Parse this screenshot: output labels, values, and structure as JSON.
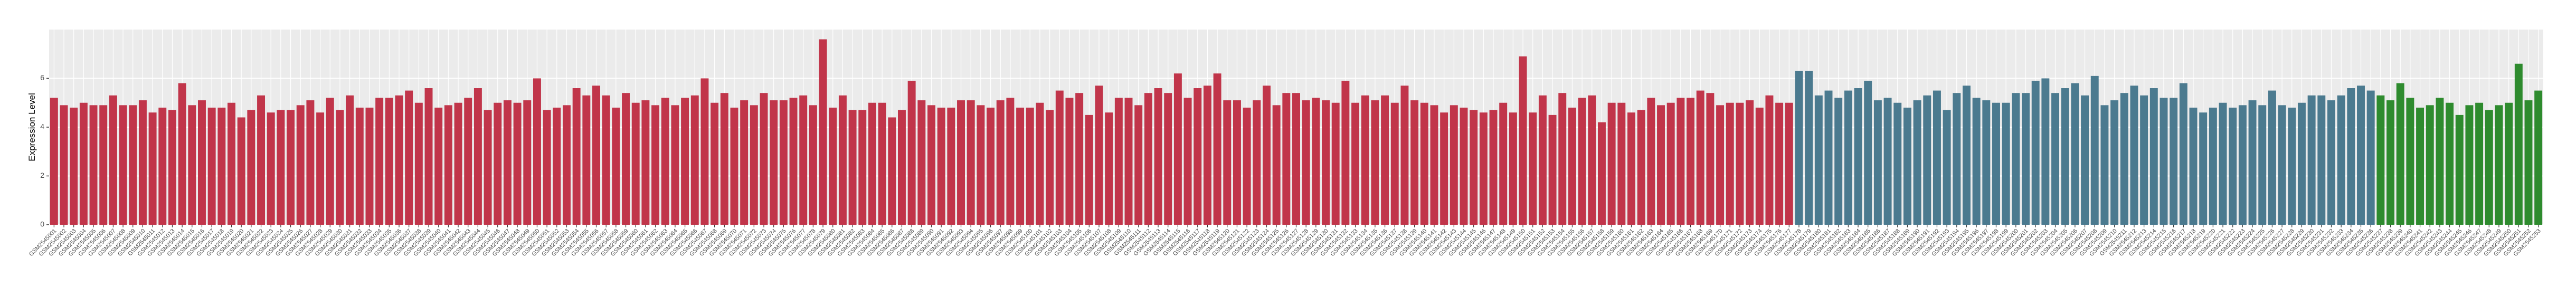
{
  "chart_data": {
    "type": "bar",
    "y_label": "Expression Level",
    "categories": [
      "GSM2545001",
      "GSM2545002",
      "GSM2545003",
      "GSM2545004",
      "GSM2545005",
      "GSM2545006",
      "GSM2545007",
      "GSM2545008",
      "GSM2545009",
      "GSM2545010",
      "GSM2545011",
      "GSM2545012",
      "GSM2545013",
      "GSM2545014",
      "GSM2545015",
      "GSM2545016",
      "GSM2545017",
      "GSM2545018",
      "GSM2545019",
      "GSM2545020",
      "GSM2545021",
      "GSM2545022",
      "GSM2545023",
      "GSM2545024",
      "GSM2545025",
      "GSM2545026",
      "GSM2545027",
      "GSM2545028",
      "GSM2545029",
      "GSM2545030",
      "GSM2545031",
      "GSM2545032",
      "GSM2545033",
      "GSM2545034",
      "GSM2545035",
      "GSM2545036",
      "GSM2545037",
      "GSM2545038",
      "GSM2545039",
      "GSM2545040",
      "GSM2545041",
      "GSM2545042",
      "GSM2545043",
      "GSM2545044",
      "GSM2545045",
      "GSM2545046",
      "GSM2545047",
      "GSM2545048",
      "GSM2545049",
      "GSM2545050",
      "GSM2545051",
      "GSM2545052",
      "GSM2545053",
      "GSM2545054",
      "GSM2545055",
      "GSM2545056",
      "GSM2545057",
      "GSM2545058",
      "GSM2545059",
      "GSM2545060",
      "GSM2545061",
      "GSM2545062",
      "GSM2545063",
      "GSM2545064",
      "GSM2545065",
      "GSM2545066",
      "GSM2545067",
      "GSM2545068",
      "GSM2545069",
      "GSM2545070",
      "GSM2545071",
      "GSM2545072",
      "GSM2545073",
      "GSM2545074",
      "GSM2545075",
      "GSM2545076",
      "GSM2545077",
      "GSM2545078",
      "GSM2545079",
      "GSM2545080",
      "GSM2545081",
      "GSM2545082",
      "GSM2545083",
      "GSM2545084",
      "GSM2545085",
      "GSM2545086",
      "GSM2545087",
      "GSM2545088",
      "GSM2545089",
      "GSM2545090",
      "GSM2545091",
      "GSM2545092",
      "GSM2545093",
      "GSM2545094",
      "GSM2545095",
      "GSM2545096",
      "GSM2545097",
      "GSM2545098",
      "GSM2545099",
      "GSM2545100",
      "GSM2545101",
      "GSM2545102",
      "GSM2545103",
      "GSM2545104",
      "GSM2545105",
      "GSM2545106",
      "GSM2545107",
      "GSM2545108",
      "GSM2545109",
      "GSM2545110",
      "GSM2545111",
      "GSM2545112",
      "GSM2545113",
      "GSM2545114",
      "GSM2545115",
      "GSM2545116",
      "GSM2545117",
      "GSM2545118",
      "GSM2545119",
      "GSM2545120",
      "GSM2545121",
      "GSM2545122",
      "GSM2545123",
      "GSM2545124",
      "GSM2545125",
      "GSM2545126",
      "GSM2545127",
      "GSM2545128",
      "GSM2545129",
      "GSM2545130",
      "GSM2545131",
      "GSM2545132",
      "GSM2545133",
      "GSM2545134",
      "GSM2545135",
      "GSM2545136",
      "GSM2545137",
      "GSM2545138",
      "GSM2545139",
      "GSM2545140",
      "GSM2545141",
      "GSM2545142",
      "GSM2545143",
      "GSM2545144",
      "GSM2545145",
      "GSM2545146",
      "GSM2545147",
      "GSM2545148",
      "GSM2545149",
      "GSM2545150",
      "GSM2545151",
      "GSM2545152",
      "GSM2545153",
      "GSM2545154",
      "GSM2545155",
      "GSM2545156",
      "GSM2545157",
      "GSM2545158",
      "GSM2545159",
      "GSM2545160",
      "GSM2545161",
      "GSM2545162",
      "GSM2545163",
      "GSM2545164",
      "GSM2545165",
      "GSM2545166",
      "GSM2545167",
      "GSM2545168",
      "GSM2545169",
      "GSM2545170",
      "GSM2545171",
      "GSM2545172",
      "GSM2545173",
      "GSM2545174",
      "GSM2545175",
      "GSM2545176",
      "GSM2545177",
      "GSM2545178",
      "GSM2545179",
      "GSM2545180",
      "GSM2545181",
      "GSM2545182",
      "GSM2545183",
      "GSM2545184",
      "GSM2545185",
      "GSM2545186",
      "GSM2545187",
      "GSM2545188",
      "GSM2545189",
      "GSM2545190",
      "GSM2545191",
      "GSM2545192",
      "GSM2545193",
      "GSM2545194",
      "GSM2545195",
      "GSM2545196",
      "GSM2545197",
      "GSM2545198",
      "GSM2545199",
      "GSM2545200",
      "GSM2545201",
      "GSM2545202",
      "GSM2545203",
      "GSM2545204",
      "GSM2545205",
      "GSM2545206",
      "GSM2545207",
      "GSM2545208",
      "GSM2545209",
      "GSM2545210",
      "GSM2545211",
      "GSM2545212",
      "GSM2545213",
      "GSM2545214",
      "GSM2545215",
      "GSM2545216",
      "GSM2545217",
      "GSM2545218",
      "GSM2545219",
      "GSM2545220",
      "GSM2545221",
      "GSM2545222",
      "GSM2545223",
      "GSM2545224",
      "GSM2545225",
      "GSM2545226",
      "GSM2545227",
      "GSM2545228",
      "GSM2545229",
      "GSM2545230",
      "GSM2545231",
      "GSM2545232",
      "GSM2545233",
      "GSM2545234",
      "GSM2545235",
      "GSM2545236",
      "GSM2545237",
      "GSM2545238",
      "GSM2545239",
      "GSM2545240",
      "GSM2545241",
      "GSM2545242",
      "GSM2545243",
      "GSM2545244",
      "GSM2545245",
      "GSM2545246",
      "GSM2545247",
      "GSM2545248",
      "GSM2545249",
      "GSM2545250",
      "GSM2545251",
      "GSM2545252",
      "GSM2545253"
    ],
    "series": [
      {
        "color": "#c1354a",
        "values": [
          5.2,
          4.9,
          4.8,
          5.0,
          4.9,
          4.9,
          5.3,
          4.9,
          4.9,
          5.1,
          4.6,
          4.8,
          4.7,
          5.8,
          4.9,
          5.1,
          4.8,
          4.8,
          5.0,
          4.4,
          4.7,
          5.3,
          4.6,
          4.7,
          4.7,
          4.9,
          5.1,
          4.6,
          5.2,
          4.7,
          5.3,
          4.8,
          4.8,
          5.2,
          5.2,
          5.3,
          5.5,
          5.0,
          5.6,
          4.8,
          4.9,
          5.0,
          5.2,
          5.6,
          4.7,
          5.0,
          5.1,
          5.0,
          5.1,
          6.0,
          4.7,
          4.8,
          4.9,
          5.6,
          5.3,
          5.7,
          5.3,
          4.8,
          5.4,
          5.0,
          5.1,
          4.9,
          5.2,
          4.9,
          5.2,
          5.3,
          6.0,
          5.0,
          5.4,
          4.8,
          5.1,
          4.9,
          5.4,
          5.1,
          5.1,
          5.2,
          5.3,
          4.9,
          7.6,
          4.8,
          5.3,
          4.7,
          4.7,
          5.0,
          5.0,
          4.4,
          4.7,
          5.9,
          5.1,
          4.9,
          4.8,
          4.8,
          5.1,
          5.1,
          4.9,
          4.8,
          5.1,
          5.2,
          4.8,
          4.8,
          5.0,
          4.7,
          5.5,
          5.2,
          5.4,
          4.5,
          5.7,
          4.6,
          5.2,
          5.2,
          4.9,
          5.4,
          5.6,
          5.4,
          6.2,
          5.2,
          5.6,
          5.7,
          6.2,
          5.1,
          5.1,
          4.8,
          5.1,
          5.7,
          4.9,
          5.4,
          5.4,
          5.1,
          5.2,
          5.1,
          5.0,
          5.9,
          5.0,
          5.3,
          5.1,
          5.3,
          5.0,
          5.7,
          5.1,
          5.0,
          4.9,
          4.6,
          4.9,
          4.8,
          4.7,
          4.6,
          4.7,
          5.0,
          4.6,
          6.9,
          4.6,
          5.3,
          4.5,
          5.4,
          4.8,
          5.2,
          5.3,
          4.2,
          5.0,
          5.0,
          4.6,
          4.7,
          5.2,
          4.9,
          5.0,
          5.2,
          5.2,
          5.5,
          5.4,
          4.9,
          5.0,
          5.0,
          5.1,
          4.8,
          5.3,
          5.0,
          5.0,
          null,
          null,
          null,
          null,
          null,
          null,
          null,
          null,
          null,
          null,
          null,
          null,
          null,
          null,
          null,
          null,
          null,
          null,
          null,
          null,
          null,
          null,
          null,
          null,
          null,
          null,
          null,
          null,
          null,
          null,
          null,
          null,
          null,
          null,
          null,
          null,
          null,
          null,
          null,
          null,
          null,
          null,
          null,
          null,
          null,
          null,
          null,
          null,
          null,
          null,
          null,
          null,
          null,
          null,
          null,
          null,
          null,
          null,
          null,
          null,
          null,
          null,
          null,
          null,
          null,
          null,
          null,
          null,
          null,
          null,
          null,
          null,
          null,
          null,
          null,
          null
        ]
      },
      {
        "color": "#4b7a8f",
        "values": [
          null,
          null,
          null,
          null,
          null,
          null,
          null,
          null,
          null,
          null,
          null,
          null,
          null,
          null,
          null,
          null,
          null,
          null,
          null,
          null,
          null,
          null,
          null,
          null,
          null,
          null,
          null,
          null,
          null,
          null,
          null,
          null,
          null,
          null,
          null,
          null,
          null,
          null,
          null,
          null,
          null,
          null,
          null,
          null,
          null,
          null,
          null,
          null,
          null,
          null,
          null,
          null,
          null,
          null,
          null,
          null,
          null,
          null,
          null,
          null,
          null,
          null,
          null,
          null,
          null,
          null,
          null,
          null,
          null,
          null,
          null,
          null,
          null,
          null,
          null,
          null,
          null,
          null,
          null,
          null,
          null,
          null,
          null,
          null,
          null,
          null,
          null,
          null,
          null,
          null,
          null,
          null,
          null,
          null,
          null,
          null,
          null,
          null,
          null,
          null,
          null,
          null,
          null,
          null,
          null,
          null,
          null,
          null,
          null,
          null,
          null,
          null,
          null,
          null,
          null,
          null,
          null,
          null,
          null,
          null,
          null,
          null,
          null,
          null,
          null,
          null,
          null,
          null,
          null,
          null,
          null,
          null,
          null,
          null,
          null,
          null,
          null,
          null,
          null,
          null,
          null,
          null,
          null,
          null,
          null,
          null,
          null,
          null,
          null,
          null,
          null,
          null,
          null,
          null,
          null,
          null,
          null,
          null,
          null,
          null,
          null,
          null,
          null,
          null,
          null,
          null,
          null,
          null,
          null,
          null,
          null,
          null,
          null,
          null,
          null,
          null,
          null,
          6.3,
          6.3,
          5.3,
          5.5,
          5.2,
          5.5,
          5.6,
          5.9,
          5.1,
          5.2,
          5.0,
          4.8,
          5.1,
          5.3,
          5.5,
          4.7,
          5.4,
          5.7,
          5.2,
          5.1,
          5.0,
          5.0,
          5.4,
          5.4,
          5.9,
          6.0,
          5.4,
          5.6,
          5.8,
          5.3,
          6.1,
          4.9,
          5.1,
          5.4,
          5.7,
          5.3,
          5.6,
          5.2,
          5.2,
          5.8,
          4.8,
          4.6,
          4.8,
          5.0,
          4.8,
          4.9,
          5.1,
          4.9,
          5.5,
          4.9,
          4.8,
          5.0,
          5.3,
          5.3,
          5.1,
          5.3,
          5.6,
          5.7,
          5.5,
          null,
          null,
          null,
          null,
          null,
          null,
          null,
          null,
          null,
          null,
          null,
          null,
          null,
          null,
          null,
          null,
          null
        ]
      },
      {
        "color": "#2e8b2e",
        "values": [
          null,
          null,
          null,
          null,
          null,
          null,
          null,
          null,
          null,
          null,
          null,
          null,
          null,
          null,
          null,
          null,
          null,
          null,
          null,
          null,
          null,
          null,
          null,
          null,
          null,
          null,
          null,
          null,
          null,
          null,
          null,
          null,
          null,
          null,
          null,
          null,
          null,
          null,
          null,
          null,
          null,
          null,
          null,
          null,
          null,
          null,
          null,
          null,
          null,
          null,
          null,
          null,
          null,
          null,
          null,
          null,
          null,
          null,
          null,
          null,
          null,
          null,
          null,
          null,
          null,
          null,
          null,
          null,
          null,
          null,
          null,
          null,
          null,
          null,
          null,
          null,
          null,
          null,
          null,
          null,
          null,
          null,
          null,
          null,
          null,
          null,
          null,
          null,
          null,
          null,
          null,
          null,
          null,
          null,
          null,
          null,
          null,
          null,
          null,
          null,
          null,
          null,
          null,
          null,
          null,
          null,
          null,
          null,
          null,
          null,
          null,
          null,
          null,
          null,
          null,
          null,
          null,
          null,
          null,
          null,
          null,
          null,
          null,
          null,
          null,
          null,
          null,
          null,
          null,
          null,
          null,
          null,
          null,
          null,
          null,
          null,
          null,
          null,
          null,
          null,
          null,
          null,
          null,
          null,
          null,
          null,
          null,
          null,
          null,
          null,
          null,
          null,
          null,
          null,
          null,
          null,
          null,
          null,
          null,
          null,
          null,
          null,
          null,
          null,
          null,
          null,
          null,
          null,
          null,
          null,
          null,
          null,
          null,
          null,
          null,
          null,
          null,
          null,
          null,
          null,
          null,
          null,
          null,
          null,
          null,
          null,
          null,
          null,
          null,
          null,
          null,
          null,
          null,
          null,
          null,
          null,
          null,
          null,
          null,
          null,
          null,
          null,
          null,
          null,
          null,
          null,
          null,
          null,
          null,
          null,
          null,
          null,
          null,
          null,
          null,
          null,
          null,
          null,
          null,
          null,
          null,
          null,
          null,
          null,
          null,
          null,
          null,
          null,
          null,
          null,
          null,
          null,
          null,
          null,
          null,
          null,
          5.3,
          5.1,
          5.8,
          5.2,
          4.8,
          4.9,
          5.2,
          5.0,
          4.5,
          4.9,
          5.0,
          4.7,
          4.9,
          5.0,
          6.6,
          5.1,
          5.5
        ]
      }
    ],
    "ylim": [
      0,
      8
    ],
    "yticks": [
      0,
      2,
      4,
      6
    ],
    "grid": true
  }
}
